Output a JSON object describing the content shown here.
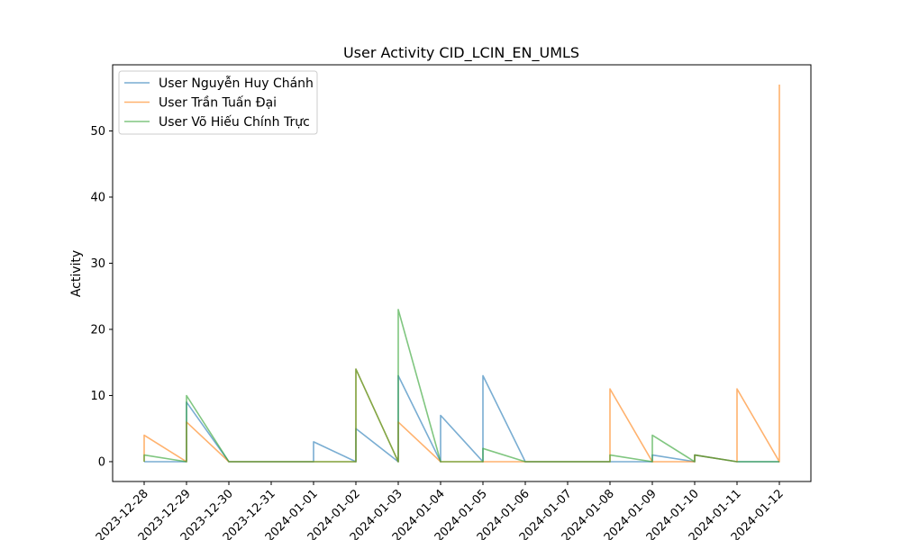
{
  "chart_data": {
    "type": "line",
    "title": "User Activity CID_LCIN_EN_UMLS",
    "xlabel": "",
    "ylabel": "Activity",
    "x": [
      "2023-12-28",
      "2023-12-29",
      "2023-12-30",
      "2023-12-31",
      "2024-01-01",
      "2024-01-02",
      "2024-01-03",
      "2024-01-04",
      "2024-01-05",
      "2024-01-06",
      "2024-01-07",
      "2024-01-08",
      "2024-01-09",
      "2024-01-10",
      "2024-01-11",
      "2024-01-12"
    ],
    "yticks": [
      0,
      10,
      20,
      30,
      40,
      50
    ],
    "ylim": [
      -3,
      60
    ],
    "grid": false,
    "legend_position": "top-left",
    "series": [
      {
        "name": "User Nguyễn Huy Chánh",
        "color": "#1f77b4",
        "points": [
          [
            "2023-12-28",
            0
          ],
          [
            "2023-12-29",
            0
          ],
          [
            "2023-12-29",
            9
          ],
          [
            "2023-12-30",
            0
          ],
          [
            "2024-01-01",
            0
          ],
          [
            "2024-01-01",
            3
          ],
          [
            "2024-01-02",
            0
          ],
          [
            "2024-01-02",
            5
          ],
          [
            "2024-01-03",
            0
          ],
          [
            "2024-01-03",
            13
          ],
          [
            "2024-01-04",
            0
          ],
          [
            "2024-01-04",
            7
          ],
          [
            "2024-01-05",
            0
          ],
          [
            "2024-01-05",
            13
          ],
          [
            "2024-01-06",
            0
          ],
          [
            "2024-01-08",
            0
          ],
          [
            "2024-01-09",
            0
          ],
          [
            "2024-01-09",
            1
          ],
          [
            "2024-01-10",
            0
          ],
          [
            "2024-01-10",
            1
          ],
          [
            "2024-01-11",
            0
          ],
          [
            "2024-01-12",
            0
          ]
        ]
      },
      {
        "name": "User Trần Tuấn Đại",
        "color": "#ff7f0e",
        "points": [
          [
            "2023-12-28",
            0
          ],
          [
            "2023-12-28",
            4
          ],
          [
            "2023-12-29",
            0
          ],
          [
            "2023-12-29",
            6
          ],
          [
            "2023-12-30",
            0
          ],
          [
            "2024-01-02",
            0
          ],
          [
            "2024-01-02",
            14
          ],
          [
            "2024-01-03",
            0
          ],
          [
            "2024-01-03",
            6
          ],
          [
            "2024-01-04",
            0
          ],
          [
            "2024-01-08",
            0
          ],
          [
            "2024-01-08",
            11
          ],
          [
            "2024-01-09",
            0
          ],
          [
            "2024-01-10",
            0
          ],
          [
            "2024-01-10",
            1
          ],
          [
            "2024-01-11",
            0
          ],
          [
            "2024-01-11",
            11
          ],
          [
            "2024-01-12",
            0
          ],
          [
            "2024-01-12",
            57
          ]
        ]
      },
      {
        "name": "User Võ Hiếu Chính Trực",
        "color": "#2ca02c",
        "points": [
          [
            "2023-12-28",
            0
          ],
          [
            "2023-12-28",
            1
          ],
          [
            "2023-12-29",
            0
          ],
          [
            "2023-12-29",
            10
          ],
          [
            "2023-12-30",
            0
          ],
          [
            "2024-01-02",
            0
          ],
          [
            "2024-01-02",
            14
          ],
          [
            "2024-01-03",
            0
          ],
          [
            "2024-01-03",
            23
          ],
          [
            "2024-01-04",
            0
          ],
          [
            "2024-01-05",
            0
          ],
          [
            "2024-01-05",
            2
          ],
          [
            "2024-01-06",
            0
          ],
          [
            "2024-01-08",
            0
          ],
          [
            "2024-01-08",
            1
          ],
          [
            "2024-01-09",
            0
          ],
          [
            "2024-01-09",
            4
          ],
          [
            "2024-01-10",
            0
          ],
          [
            "2024-01-10",
            1
          ],
          [
            "2024-01-11",
            0
          ],
          [
            "2024-01-12",
            0
          ]
        ]
      }
    ]
  }
}
